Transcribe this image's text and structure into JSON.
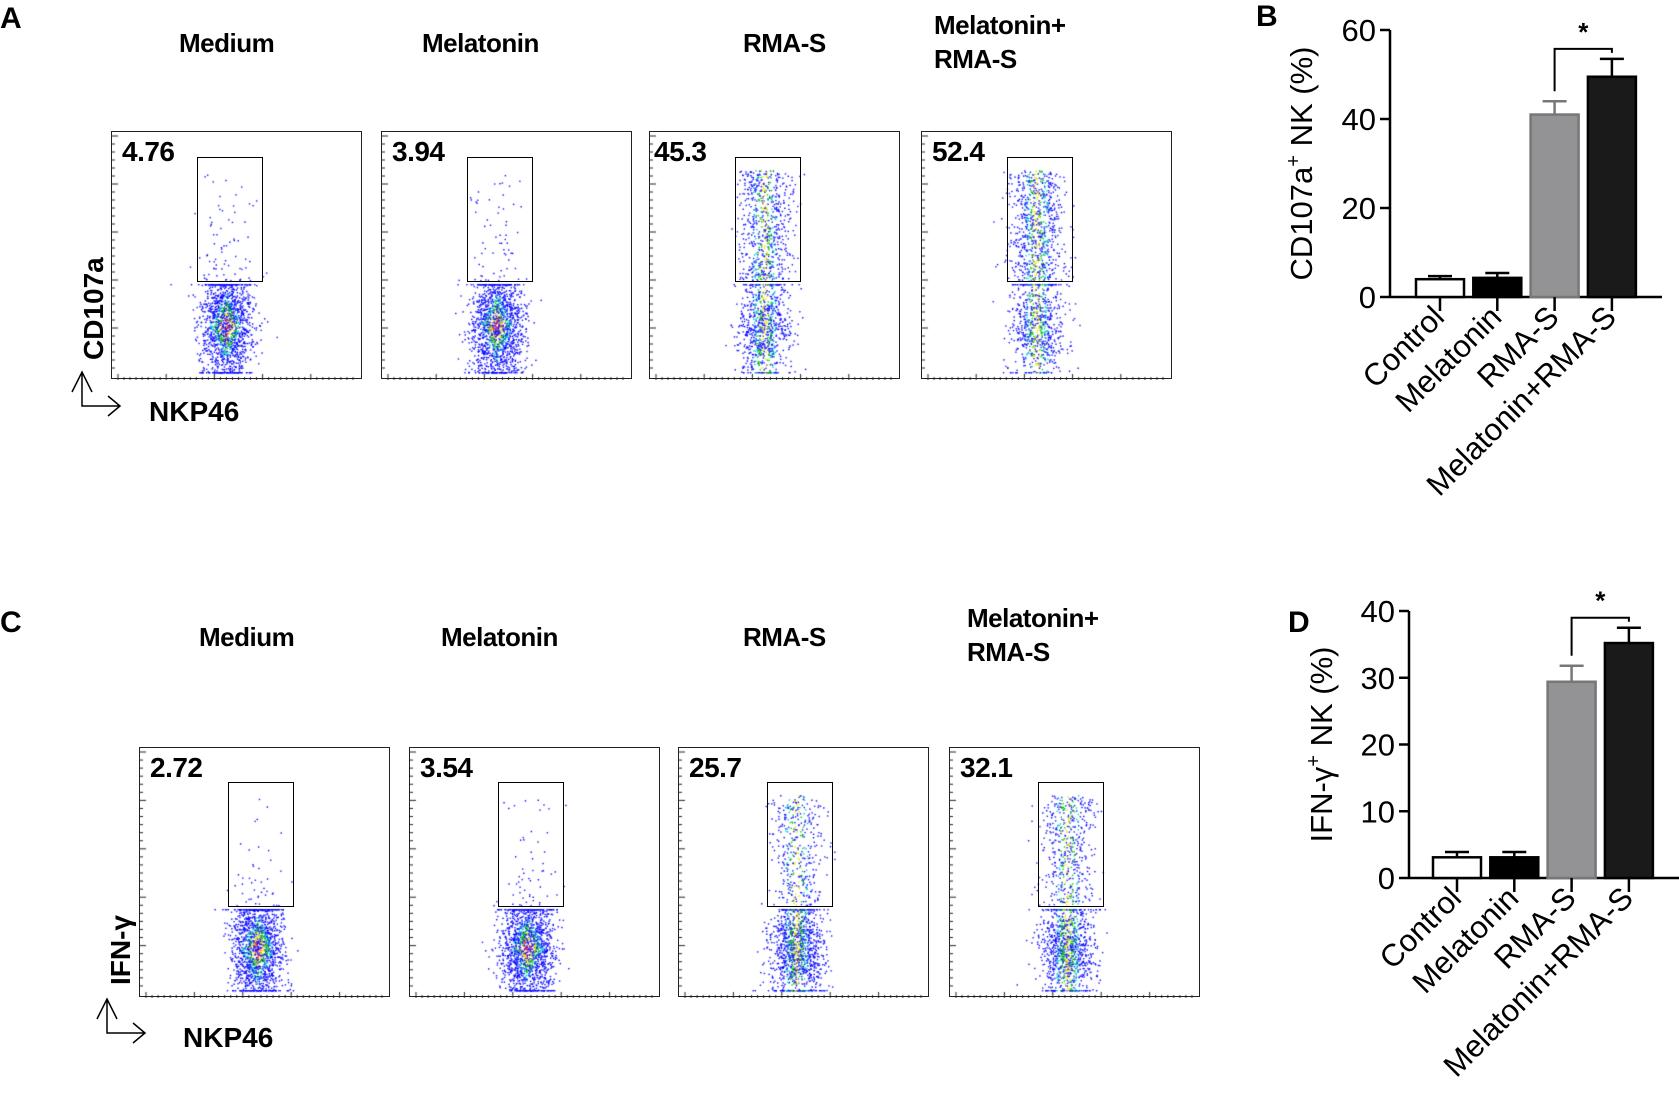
{
  "figure": {
    "panel_letters": {
      "a": "A",
      "b": "B",
      "c": "C",
      "d": "D"
    },
    "flow_rows": [
      {
        "y_marker": "CD107a",
        "x_marker": "NKP46",
        "panels": [
          {
            "title": "Medium",
            "percent": "4.76"
          },
          {
            "title": "Melatonin",
            "percent": "3.94"
          },
          {
            "title": "RMA-S",
            "percent": "45.3"
          },
          {
            "title": "Melatonin+\nRMA-S",
            "percent": "52.4"
          }
        ]
      },
      {
        "y_marker": "IFN-γ",
        "x_marker": "NKP46",
        "panels": [
          {
            "title": "Medium",
            "percent": "2.72"
          },
          {
            "title": "Melatonin",
            "percent": "3.54"
          },
          {
            "title": "RMA-S",
            "percent": "25.7"
          },
          {
            "title": "Melatonin+\nRMA-S",
            "percent": "32.1"
          }
        ]
      }
    ]
  },
  "chart_data": [
    {
      "type": "bar",
      "panel": "B",
      "title": "",
      "xlabel": "",
      "ylabel": "CD107a+ NK (%)",
      "ylabel_main": "CD107a",
      "ylabel_sup": "+",
      "ylabel_rest": " NK (%)",
      "categories": [
        "Control",
        "Melatonin",
        "RMA-S",
        "Melatonin+RMA-S"
      ],
      "values": [
        4.0,
        4.3,
        41.0,
        49.5
      ],
      "error": [
        0.7,
        1.1,
        3.0,
        4.0
      ],
      "bar_colors": [
        "#ffffff",
        "#000000",
        "#939396",
        "#1a1a1a"
      ],
      "ylim": [
        0,
        60
      ],
      "yticks": [
        "0",
        "20",
        "40",
        "60"
      ],
      "significance": {
        "between": [
          2,
          3
        ],
        "label": "*"
      },
      "grid": false
    },
    {
      "type": "bar",
      "panel": "D",
      "title": "",
      "xlabel": "",
      "ylabel": "IFN-γ+ NK (%)",
      "ylabel_main": "IFN-γ",
      "ylabel_sup": "+",
      "ylabel_rest": " NK (%)",
      "categories": [
        "Control",
        "Melatonin",
        "RMA-S",
        "Melatonin+RMA-S"
      ],
      "values": [
        3.1,
        3.1,
        29.4,
        35.2
      ],
      "error": [
        0.8,
        0.8,
        2.4,
        2.3
      ],
      "bar_colors": [
        "#ffffff",
        "#000000",
        "#939396",
        "#1a1a1a"
      ],
      "ylim": [
        0,
        40
      ],
      "yticks": [
        "0",
        "10",
        "20",
        "30",
        "40"
      ],
      "significance": {
        "between": [
          2,
          3
        ],
        "label": "*"
      },
      "grid": false
    }
  ]
}
